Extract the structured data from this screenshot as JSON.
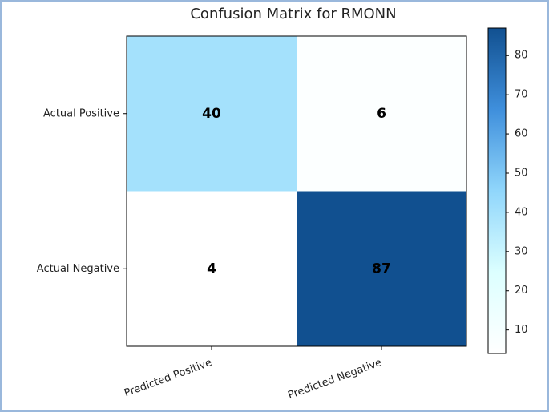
{
  "chart_data": {
    "type": "heatmap",
    "title": "Confusion Matrix for RMONN",
    "x_categories": [
      "Predicted Positive",
      "Predicted Negative"
    ],
    "y_categories": [
      "Actual Positive",
      "Actual Negative"
    ],
    "values": [
      [
        40,
        6
      ],
      [
        4,
        87
      ]
    ],
    "clim": [
      4,
      87
    ],
    "cticks": [
      10,
      20,
      30,
      40,
      50,
      60,
      70,
      80
    ],
    "colorscale": [
      "#ffffff",
      "#dcffff",
      "#90d6fb",
      "#3f8fdc",
      "#115090"
    ]
  }
}
